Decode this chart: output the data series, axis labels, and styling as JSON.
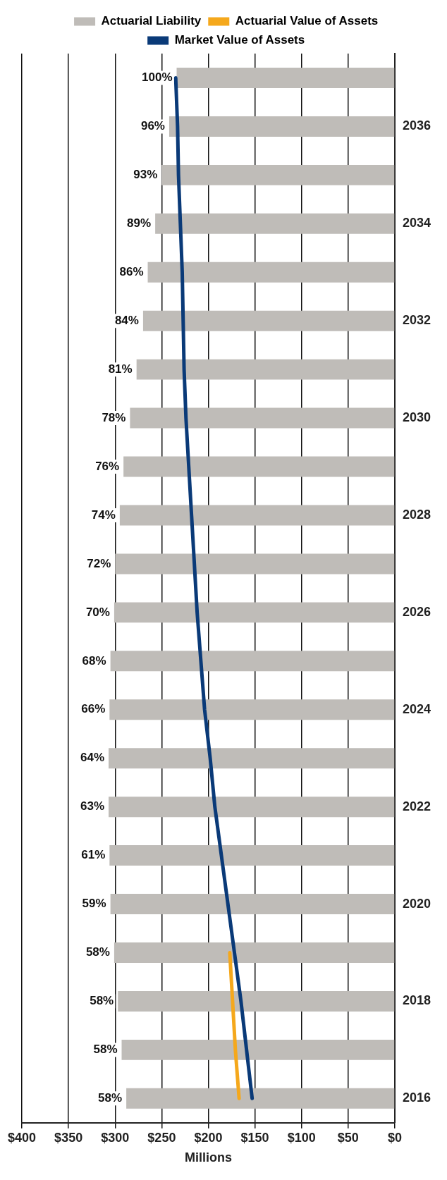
{
  "chart_data": {
    "type": "bar",
    "orientation": "horizontal",
    "xlabel": "Millions",
    "categories": [
      null,
      "2036",
      null,
      "2034",
      null,
      "2032",
      null,
      "2030",
      null,
      "2028",
      null,
      "2026",
      null,
      "2024",
      null,
      "2022",
      null,
      "2020",
      null,
      "2018",
      null,
      "2016"
    ],
    "series": [
      {
        "name": "Actuarial Liability",
        "color": "#bfbcb8",
        "values": [
          234,
          242,
          250,
          257,
          265,
          270,
          277,
          284,
          291,
          295,
          300,
          301,
          305,
          306,
          307,
          307,
          306,
          305,
          301,
          297,
          293,
          288
        ]
      },
      {
        "name": "Actuarial Value of Assets",
        "type": "line",
        "color": "#f5a81c",
        "values": [
          null,
          null,
          null,
          null,
          null,
          null,
          null,
          null,
          null,
          null,
          null,
          null,
          null,
          null,
          null,
          null,
          null,
          null,
          177,
          174,
          171,
          167
        ]
      },
      {
        "name": "Market Value of Assets",
        "type": "line",
        "color": "#0a3a78",
        "values": [
          235,
          233,
          232,
          230,
          228,
          227,
          226,
          224,
          221,
          218,
          215,
          212,
          208,
          204,
          198,
          193,
          186,
          179,
          172,
          165,
          159,
          153
        ]
      }
    ],
    "annotations": [
      "100%",
      "96%",
      "93%",
      "89%",
      "86%",
      "84%",
      "81%",
      "78%",
      "76%",
      "74%",
      "72%",
      "70%",
      "68%",
      "66%",
      "64%",
      "63%",
      "61%",
      "59%",
      "58%",
      "58%",
      "58%",
      "58%"
    ],
    "xlim": [
      400,
      0
    ],
    "xticks": [
      {
        "value": 400,
        "label": "$400"
      },
      {
        "value": 350,
        "label": "$350"
      },
      {
        "value": 300,
        "label": "$300"
      },
      {
        "value": 250,
        "label": "$250"
      },
      {
        "value": 200,
        "label": "$200"
      },
      {
        "value": 150,
        "label": "$150"
      },
      {
        "value": 100,
        "label": "$100"
      },
      {
        "value": 50,
        "label": "$50"
      },
      {
        "value": 0,
        "label": "$0"
      }
    ],
    "grid": "x",
    "legend": "top",
    "marker": "none",
    "line_style": "solid"
  }
}
